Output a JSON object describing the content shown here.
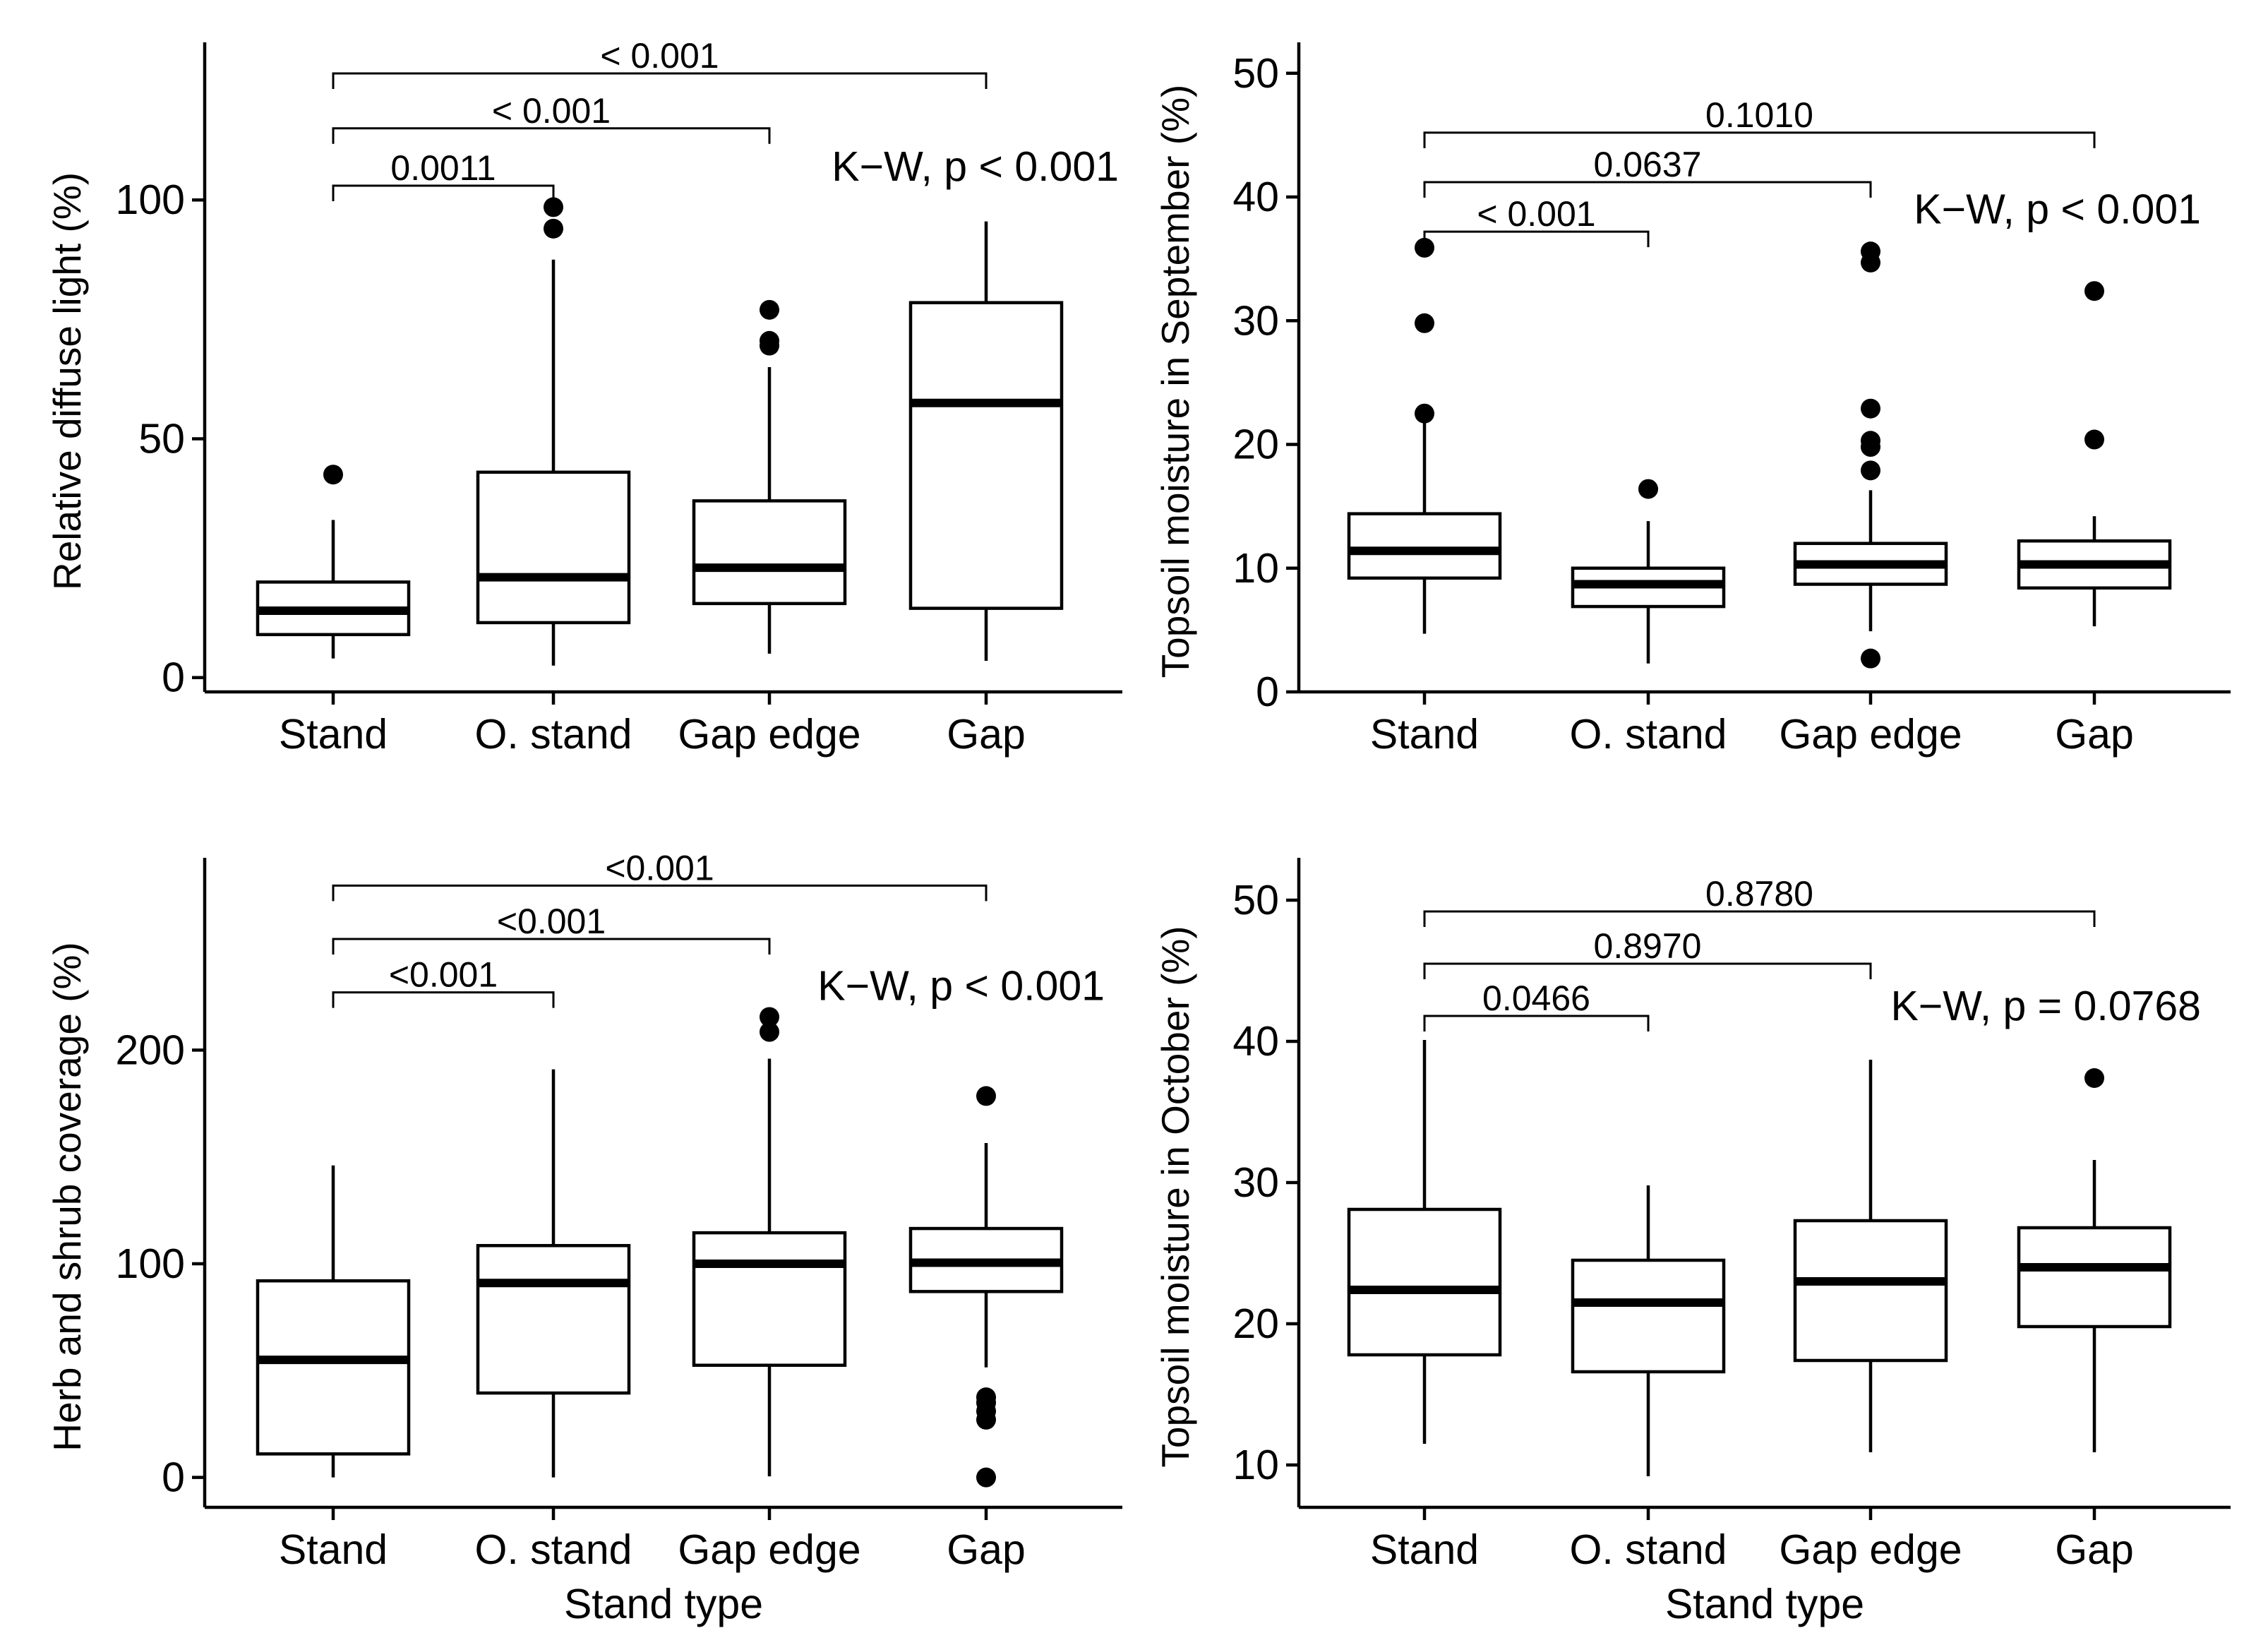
{
  "chart_data": [
    {
      "type": "boxplot",
      "panel": "top-left",
      "ylabel": "Relative diffuse light (%)",
      "xlabel": "",
      "categories": [
        "Stand",
        "O. stand",
        "Gap edge",
        "Gap"
      ],
      "ylim": [
        -3,
        133
      ],
      "yticks": [
        0,
        50,
        100
      ],
      "boxes": [
        {
          "category": "Stand",
          "whisker_low": 4,
          "q1": 9,
          "median": 14,
          "q3": 20,
          "whisker_high": 33,
          "outliers": [
            42.5
          ]
        },
        {
          "category": "O. stand",
          "whisker_low": 2.5,
          "q1": 11.5,
          "median": 21,
          "q3": 43,
          "whisker_high": 87.5,
          "outliers": [
            94,
            98.5
          ]
        },
        {
          "category": "Gap edge",
          "whisker_low": 5,
          "q1": 15.5,
          "median": 23,
          "q3": 37,
          "whisker_high": 65,
          "outliers": [
            69.5,
            70.5,
            77
          ]
        },
        {
          "category": "Gap",
          "whisker_low": 3.5,
          "q1": 14.5,
          "median": 57.5,
          "q3": 78.5,
          "whisker_high": 95.5,
          "outliers": []
        }
      ],
      "comparisons": [
        {
          "from": "Stand",
          "to": "O. stand",
          "label": "0.0011",
          "level": 103
        },
        {
          "from": "Stand",
          "to": "Gap edge",
          "label": "< 0.001",
          "level": 115
        },
        {
          "from": "Stand",
          "to": "Gap",
          "label": "< 0.001",
          "level": 126.5
        }
      ],
      "test_label": "K−W, p < 0.001",
      "test_label_y": 107
    },
    {
      "type": "boxplot",
      "panel": "top-right",
      "ylabel": "Topsoil moisture in September (%)",
      "xlabel": "",
      "categories": [
        "Stand",
        "O. stand",
        "Gap edge",
        "Gap"
      ],
      "ylim": [
        0,
        52.5
      ],
      "yticks": [
        0,
        10,
        20,
        30,
        40,
        50
      ],
      "boxes": [
        {
          "category": "Stand",
          "whisker_low": 4.7,
          "q1": 9.2,
          "median": 11.4,
          "q3": 14.4,
          "whisker_high": 21.8,
          "outliers": [
            22.5,
            29.8,
            35.9
          ]
        },
        {
          "category": "O. stand",
          "whisker_low": 2.3,
          "q1": 6.9,
          "median": 8.7,
          "q3": 10,
          "whisker_high": 13.8,
          "outliers": [
            16.4
          ]
        },
        {
          "category": "Gap edge",
          "whisker_low": 4.9,
          "q1": 8.7,
          "median": 10.3,
          "q3": 12,
          "whisker_high": 16.3,
          "outliers": [
            2.7,
            17.9,
            19.8,
            20.3,
            22.9,
            34.7,
            35.6
          ]
        },
        {
          "category": "Gap",
          "whisker_low": 5.3,
          "q1": 8.4,
          "median": 10.3,
          "q3": 12.2,
          "whisker_high": 14.2,
          "outliers": [
            20.4,
            32.4
          ]
        }
      ],
      "comparisons": [
        {
          "from": "Stand",
          "to": "O. stand",
          "label": "< 0.001",
          "level": 37.2
        },
        {
          "from": "Stand",
          "to": "Gap edge",
          "label": "0.0637",
          "level": 41.2
        },
        {
          "from": "Stand",
          "to": "Gap",
          "label": "0.1010",
          "level": 45.2
        }
      ],
      "test_label": "K−W, p < 0.001",
      "test_label_y": 39
    },
    {
      "type": "boxplot",
      "panel": "bottom-left",
      "ylabel": "Herb and shrub coverage (%)",
      "xlabel": "Stand type",
      "categories": [
        "Stand",
        "O. stand",
        "Gap edge",
        "Gap"
      ],
      "ylim": [
        -14,
        290
      ],
      "yticks": [
        0,
        100,
        200
      ],
      "boxes": [
        {
          "category": "Stand",
          "whisker_low": 0,
          "q1": 11,
          "median": 55,
          "q3": 92,
          "whisker_high": 146,
          "outliers": []
        },
        {
          "category": "O. stand",
          "whisker_low": 0,
          "q1": 39.5,
          "median": 91,
          "q3": 108.5,
          "whisker_high": 191,
          "outliers": []
        },
        {
          "category": "Gap edge",
          "whisker_low": 0.5,
          "q1": 52.5,
          "median": 100,
          "q3": 114.5,
          "whisker_high": 196,
          "outliers": [
            208.5,
            215.5
          ]
        },
        {
          "category": "Gap",
          "whisker_low": 51.5,
          "q1": 87,
          "median": 100.5,
          "q3": 116.5,
          "whisker_high": 156.5,
          "outliers": [
            0,
            27,
            31,
            35,
            37.5,
            178.5
          ]
        }
      ],
      "comparisons": [
        {
          "from": "Stand",
          "to": "O. stand",
          "label": "<0.001",
          "level": 227
        },
        {
          "from": "Stand",
          "to": "Gap edge",
          "label": "<0.001",
          "level": 252
        },
        {
          "from": "Stand",
          "to": "Gap",
          "label": "<0.001",
          "level": 277
        }
      ],
      "test_label": "K−W, p < 0.001",
      "test_label_y": 230
    },
    {
      "type": "boxplot",
      "panel": "bottom-right",
      "ylabel": "Topsoil moisture in October (%)",
      "xlabel": "Stand type",
      "categories": [
        "Stand",
        "O. stand",
        "Gap edge",
        "Gap"
      ],
      "ylim": [
        7,
        53
      ],
      "yticks": [
        10,
        20,
        30,
        40,
        50
      ],
      "boxes": [
        {
          "category": "Stand",
          "whisker_low": 11.5,
          "q1": 17.8,
          "median": 22.4,
          "q3": 28.1,
          "whisker_high": 40.1,
          "outliers": []
        },
        {
          "category": "O. stand",
          "whisker_low": 9.2,
          "q1": 16.6,
          "median": 21.5,
          "q3": 24.5,
          "whisker_high": 29.8,
          "outliers": []
        },
        {
          "category": "Gap edge",
          "whisker_low": 10.9,
          "q1": 17.4,
          "median": 23,
          "q3": 27.3,
          "whisker_high": 38.7,
          "outliers": []
        },
        {
          "category": "Gap",
          "whisker_low": 10.9,
          "q1": 19.8,
          "median": 24,
          "q3": 26.8,
          "whisker_high": 31.6,
          "outliers": [
            37.4
          ]
        }
      ],
      "comparisons": [
        {
          "from": "Stand",
          "to": "O. stand",
          "label": "0.0466",
          "level": 41.8
        },
        {
          "from": "Stand",
          "to": "Gap edge",
          "label": "0.8970",
          "level": 45.5
        },
        {
          "from": "Stand",
          "to": "Gap",
          "label": "0.8780",
          "level": 49.2
        }
      ],
      "test_label": "K−W, p = 0.0768",
      "test_label_y": 42.5
    }
  ]
}
